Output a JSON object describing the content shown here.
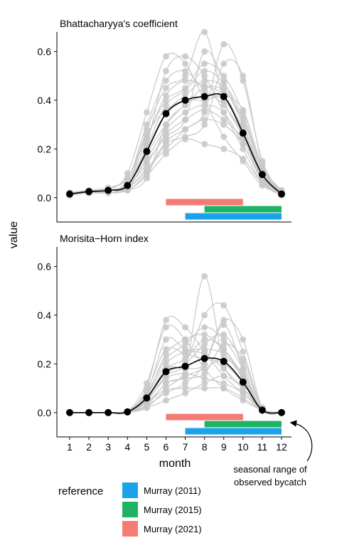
{
  "y_axis_label": "value",
  "x_axis_label": "month",
  "annotation": [
    "seasonal range of",
    "observed bycatch"
  ],
  "legend": {
    "title": "reference",
    "items": [
      {
        "label": "Murray (2011)",
        "color": "#1aa3e8"
      },
      {
        "label": "Murray (2015)",
        "color": "#1fb364"
      },
      {
        "label": "Murray (2021)",
        "color": "#f47c74"
      }
    ]
  },
  "colors": {
    "individual": "#c8c8c8",
    "mean": "#000000"
  },
  "chart_data": [
    {
      "type": "line",
      "title": "Bhattacharyya's coefficient",
      "x": [
        1,
        2,
        3,
        4,
        5,
        6,
        7,
        8,
        9,
        10,
        11,
        12
      ],
      "xticks": [
        "1",
        "2",
        "3",
        "4",
        "5",
        "6",
        "7",
        "8",
        "9",
        "10",
        "11",
        "12"
      ],
      "ylim": [
        -0.1,
        0.68
      ],
      "yticks": [
        "0.0",
        "0.2",
        "0.4",
        "0.6"
      ],
      "mean": [
        0.015,
        0.025,
        0.03,
        0.05,
        0.19,
        0.345,
        0.4,
        0.415,
        0.415,
        0.265,
        0.095,
        0.015
      ],
      "individual_series": [
        [
          0.01,
          0.02,
          0.02,
          0.03,
          0.08,
          0.3,
          0.38,
          0.45,
          0.42,
          0.28,
          0.08,
          0.01
        ],
        [
          0.02,
          0.03,
          0.03,
          0.06,
          0.22,
          0.52,
          0.58,
          0.5,
          0.35,
          0.2,
          0.06,
          0.01
        ],
        [
          0.01,
          0.02,
          0.03,
          0.1,
          0.35,
          0.58,
          0.55,
          0.4,
          0.25,
          0.15,
          0.05,
          0.02
        ],
        [
          0.02,
          0.02,
          0.04,
          0.07,
          0.15,
          0.25,
          0.32,
          0.6,
          0.48,
          0.3,
          0.1,
          0.02
        ],
        [
          0.01,
          0.03,
          0.02,
          0.05,
          0.28,
          0.45,
          0.5,
          0.68,
          0.4,
          0.25,
          0.07,
          0.01
        ],
        [
          0.02,
          0.02,
          0.03,
          0.04,
          0.12,
          0.2,
          0.28,
          0.35,
          0.63,
          0.48,
          0.15,
          0.02
        ],
        [
          0.01,
          0.02,
          0.02,
          0.03,
          0.1,
          0.22,
          0.25,
          0.3,
          0.55,
          0.5,
          0.14,
          0.02
        ],
        [
          0.02,
          0.03,
          0.04,
          0.08,
          0.25,
          0.4,
          0.45,
          0.55,
          0.5,
          0.35,
          0.12,
          0.03
        ],
        [
          0.01,
          0.02,
          0.03,
          0.06,
          0.2,
          0.35,
          0.42,
          0.48,
          0.45,
          0.3,
          0.1,
          0.02
        ],
        [
          0.01,
          0.02,
          0.02,
          0.05,
          0.18,
          0.3,
          0.38,
          0.42,
          0.4,
          0.28,
          0.09,
          0.01
        ],
        [
          0.02,
          0.02,
          0.03,
          0.04,
          0.16,
          0.28,
          0.35,
          0.38,
          0.35,
          0.22,
          0.08,
          0.02
        ],
        [
          0.01,
          0.03,
          0.03,
          0.06,
          0.24,
          0.42,
          0.48,
          0.46,
          0.44,
          0.32,
          0.11,
          0.02
        ],
        [
          0.02,
          0.02,
          0.02,
          0.03,
          0.09,
          0.18,
          0.24,
          0.22,
          0.2,
          0.16,
          0.06,
          0.01
        ],
        [
          0.01,
          0.02,
          0.03,
          0.07,
          0.3,
          0.48,
          0.52,
          0.44,
          0.38,
          0.26,
          0.08,
          0.02
        ],
        [
          0.02,
          0.03,
          0.03,
          0.05,
          0.14,
          0.26,
          0.32,
          0.36,
          0.32,
          0.24,
          0.09,
          0.01
        ],
        [
          0.01,
          0.02,
          0.02,
          0.04,
          0.11,
          0.23,
          0.28,
          0.32,
          0.3,
          0.22,
          0.07,
          0.02
        ],
        [
          0.02,
          0.02,
          0.03,
          0.06,
          0.21,
          0.38,
          0.44,
          0.52,
          0.47,
          0.33,
          0.12,
          0.01
        ],
        [
          0.01,
          0.03,
          0.04,
          0.08,
          0.26,
          0.36,
          0.4,
          0.4,
          0.42,
          0.36,
          0.13,
          0.03
        ]
      ],
      "reference_bars": [
        {
          "reference": "Murray (2021)",
          "start": 6,
          "end": 10
        },
        {
          "reference": "Murray (2015)",
          "start": 8,
          "end": 12
        },
        {
          "reference": "Murray (2011)",
          "start": 7,
          "end": 12
        }
      ]
    },
    {
      "type": "line",
      "title": "Morisita−Horn index",
      "x": [
        1,
        2,
        3,
        4,
        5,
        6,
        7,
        8,
        9,
        10,
        11,
        12
      ],
      "xticks": [
        "1",
        "2",
        "3",
        "4",
        "5",
        "6",
        "7",
        "8",
        "9",
        "10",
        "11",
        "12"
      ],
      "ylim": [
        -0.1,
        0.68
      ],
      "yticks": [
        "0.0",
        "0.2",
        "0.4",
        "0.6"
      ],
      "mean": [
        0.0,
        0.0,
        0.0,
        0.003,
        0.06,
        0.168,
        0.19,
        0.222,
        0.21,
        0.125,
        0.01,
        0.0
      ],
      "individual_series": [
        [
          0,
          0,
          0,
          0.002,
          0.04,
          0.12,
          0.18,
          0.56,
          0.2,
          0.1,
          0.01,
          0
        ],
        [
          0,
          0,
          0,
          0.005,
          0.1,
          0.38,
          0.35,
          0.25,
          0.15,
          0.08,
          0.01,
          0
        ],
        [
          0,
          0,
          0,
          0.004,
          0.12,
          0.35,
          0.3,
          0.18,
          0.1,
          0.05,
          0.01,
          0
        ],
        [
          0,
          0,
          0,
          0.002,
          0.05,
          0.15,
          0.2,
          0.4,
          0.44,
          0.25,
          0.02,
          0
        ],
        [
          0,
          0,
          0,
          0.001,
          0.03,
          0.08,
          0.12,
          0.2,
          0.38,
          0.3,
          0.02,
          0
        ],
        [
          0,
          0,
          0,
          0.003,
          0.08,
          0.22,
          0.28,
          0.35,
          0.3,
          0.18,
          0.01,
          0
        ],
        [
          0,
          0,
          0,
          0.002,
          0.06,
          0.18,
          0.22,
          0.3,
          0.26,
          0.15,
          0.01,
          0
        ],
        [
          0,
          0,
          0,
          0.003,
          0.07,
          0.2,
          0.25,
          0.26,
          0.24,
          0.14,
          0.01,
          0
        ],
        [
          0,
          0,
          0,
          0.001,
          0.02,
          0.05,
          0.08,
          0.12,
          0.15,
          0.1,
          0.01,
          0
        ],
        [
          0,
          0,
          0,
          0.004,
          0.09,
          0.26,
          0.24,
          0.22,
          0.2,
          0.12,
          0.01,
          0
        ],
        [
          0,
          0,
          0,
          0.002,
          0.04,
          0.1,
          0.15,
          0.18,
          0.22,
          0.16,
          0.01,
          0
        ],
        [
          0,
          0,
          0,
          0.003,
          0.06,
          0.16,
          0.2,
          0.28,
          0.32,
          0.2,
          0.02,
          0
        ],
        [
          0,
          0,
          0,
          0.002,
          0.05,
          0.14,
          0.16,
          0.14,
          0.12,
          0.08,
          0.01,
          0
        ],
        [
          0,
          0,
          0,
          0.003,
          0.08,
          0.3,
          0.26,
          0.24,
          0.18,
          0.1,
          0.01,
          0
        ],
        [
          0,
          0,
          0,
          0.002,
          0.03,
          0.12,
          0.14,
          0.16,
          0.28,
          0.22,
          0.02,
          0
        ],
        [
          0,
          0,
          0,
          0.001,
          0.02,
          0.09,
          0.1,
          0.1,
          0.1,
          0.06,
          0.01,
          0
        ],
        [
          0,
          0,
          0,
          0.003,
          0.07,
          0.24,
          0.3,
          0.32,
          0.26,
          0.14,
          0.01,
          0
        ],
        [
          0,
          0,
          0,
          0.002,
          0.05,
          0.18,
          0.18,
          0.2,
          0.36,
          0.18,
          0.01,
          0
        ]
      ],
      "reference_bars": [
        {
          "reference": "Murray (2021)",
          "start": 6,
          "end": 10
        },
        {
          "reference": "Murray (2015)",
          "start": 8,
          "end": 12
        },
        {
          "reference": "Murray (2011)",
          "start": 7,
          "end": 12
        }
      ]
    }
  ]
}
